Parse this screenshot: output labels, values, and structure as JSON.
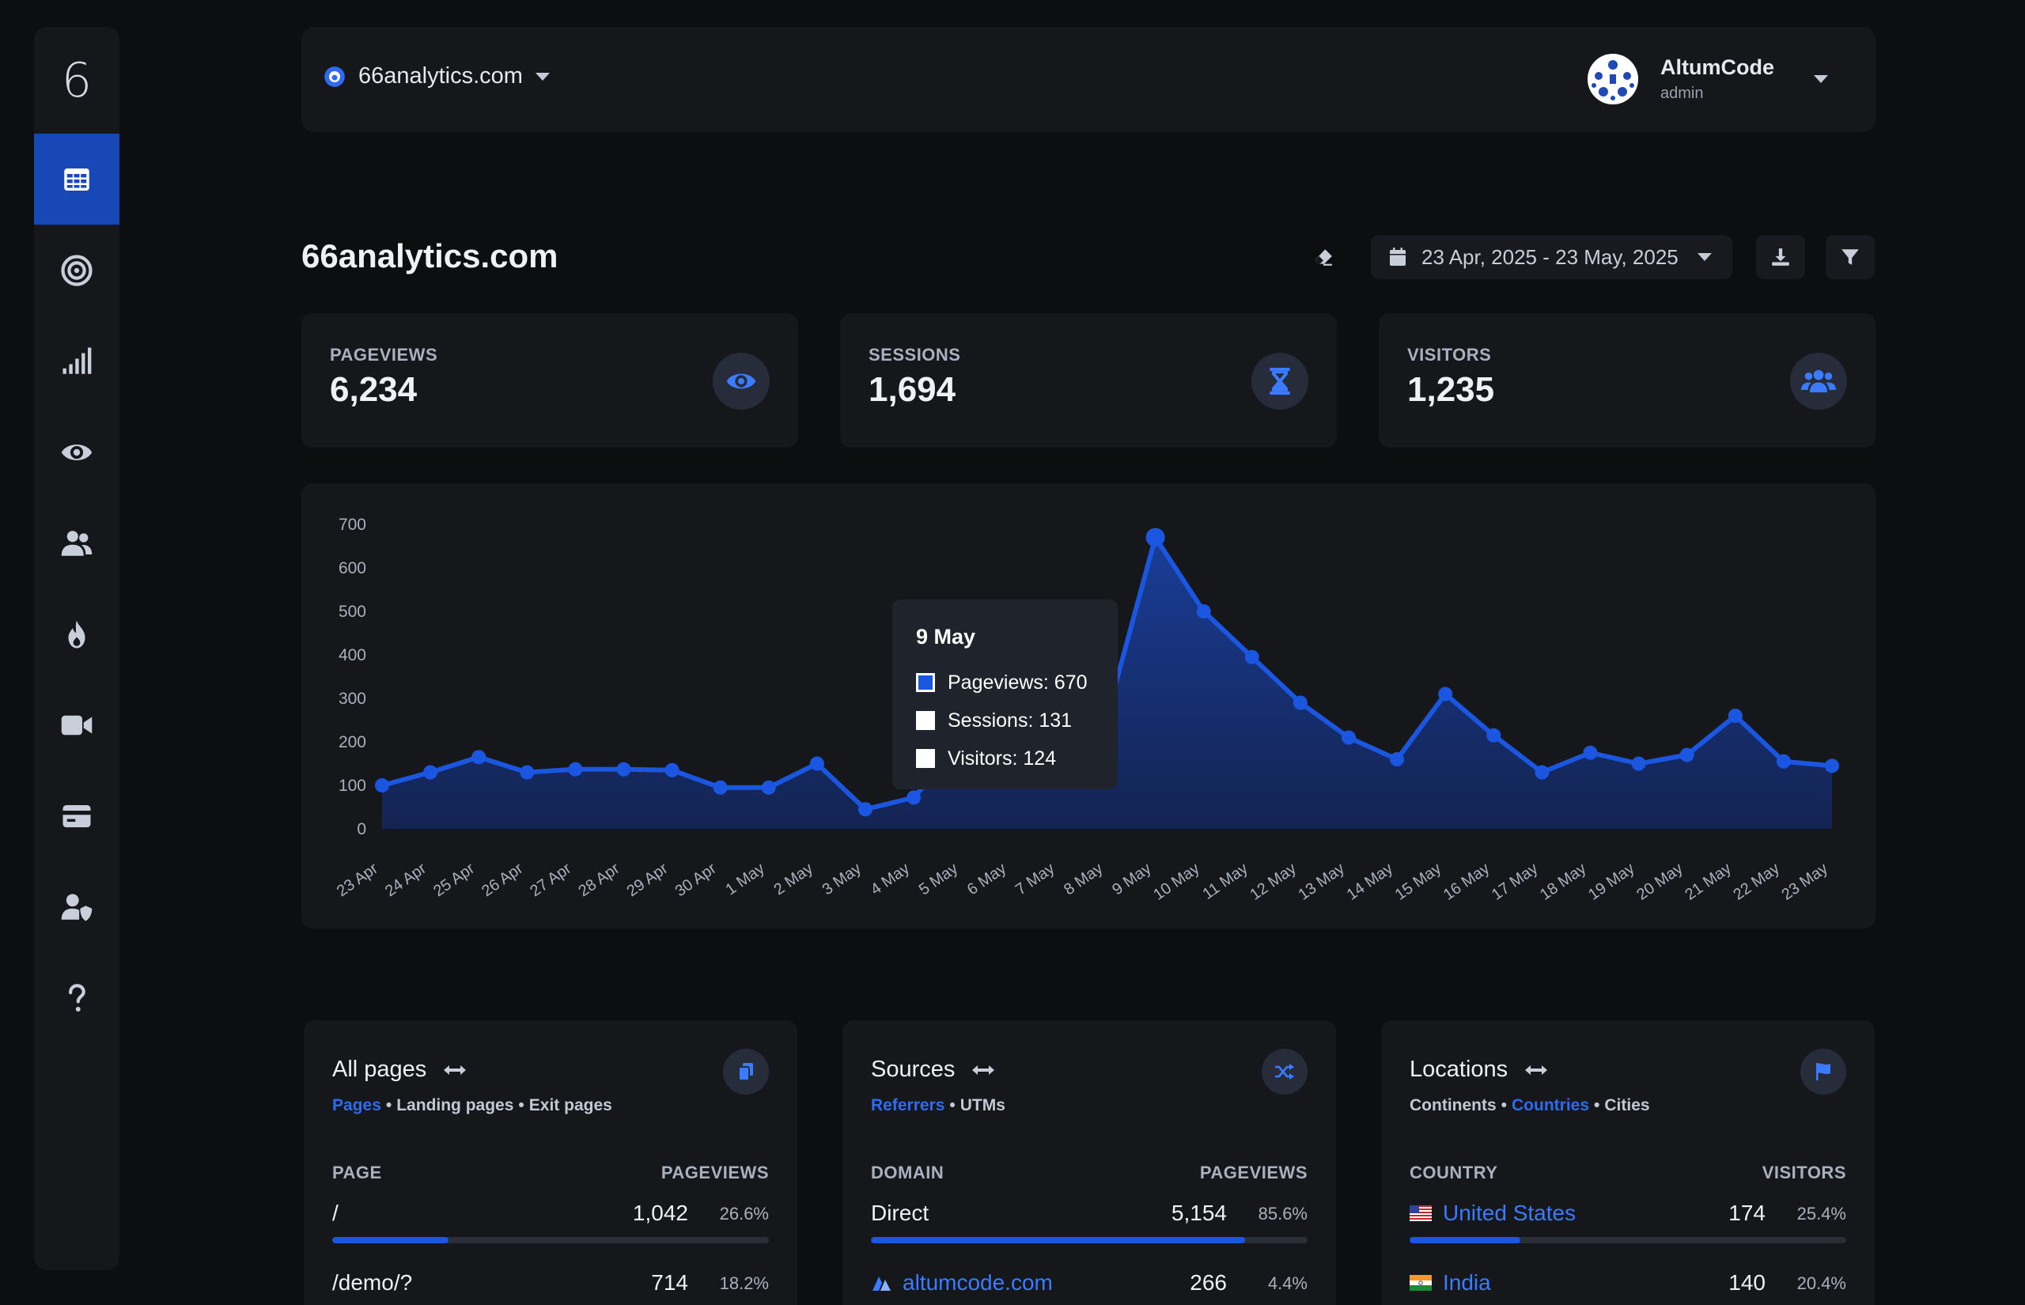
{
  "sidebar": {
    "logo": "6",
    "items": [
      {
        "icon": "grid-icon",
        "active": true
      },
      {
        "icon": "target-icon",
        "active": false
      },
      {
        "icon": "signal-bars-icon",
        "active": false
      },
      {
        "icon": "eye-icon",
        "active": false
      },
      {
        "icon": "users-icon",
        "active": false
      },
      {
        "icon": "fire-icon",
        "active": false
      },
      {
        "icon": "video-icon",
        "active": false
      },
      {
        "icon": "card-icon",
        "active": false
      },
      {
        "icon": "user-shield-icon",
        "active": false
      },
      {
        "icon": "question-icon",
        "active": false
      }
    ]
  },
  "topbar": {
    "site": "66analytics.com",
    "user_name": "AltumCode",
    "user_role": "admin"
  },
  "header": {
    "title": "66analytics.com",
    "date_range": "23 Apr, 2025 - 23 May, 2025"
  },
  "stats": [
    {
      "label": "PAGEVIEWS",
      "value": "6,234",
      "icon": "eye-icon"
    },
    {
      "label": "SESSIONS",
      "value": "1,694",
      "icon": "hourglass-icon"
    },
    {
      "label": "VISITORS",
      "value": "1,235",
      "icon": "users-icon"
    }
  ],
  "tooltip": {
    "title": "9 May",
    "rows": [
      "Pageviews: 670",
      "Sessions: 131",
      "Visitors: 124"
    ]
  },
  "chart_data": {
    "type": "area",
    "categories": [
      "23 Apr",
      "24 Apr",
      "25 Apr",
      "26 Apr",
      "27 Apr",
      "28 Apr",
      "29 Apr",
      "30 Apr",
      "1 May",
      "2 May",
      "3 May",
      "4 May",
      "5 May",
      "6 May",
      "7 May",
      "8 May",
      "9 May",
      "10 May",
      "11 May",
      "12 May",
      "13 May",
      "14 May",
      "15 May",
      "16 May",
      "17 May",
      "18 May",
      "19 May",
      "20 May",
      "21 May",
      "22 May",
      "23 May"
    ],
    "series": [
      {
        "name": "Pageviews",
        "values": [
          100,
          130,
          165,
          130,
          137,
          137,
          135,
          95,
          95,
          150,
          45,
          72,
          200,
          220,
          230,
          260,
          670,
          500,
          395,
          290,
          210,
          160,
          310,
          215,
          130,
          175,
          150,
          170,
          260,
          155,
          145
        ]
      }
    ],
    "yticks": [
      0,
      100,
      200,
      300,
      400,
      500,
      600,
      700
    ],
    "ylim": [
      0,
      700
    ],
    "color": "#1a56e0"
  },
  "cards": [
    {
      "title": "All pages",
      "icon": "copy-icon",
      "tabs": [
        {
          "label": "Pages",
          "on": true
        },
        {
          "label": "Landing pages",
          "on": false
        },
        {
          "label": "Exit pages",
          "on": false
        }
      ],
      "col1": "PAGE",
      "col2": "PAGEVIEWS",
      "rows": [
        {
          "name": "/",
          "value": "1,042",
          "pct": "26.6%",
          "fill": 0.266,
          "link": false,
          "flag": ""
        },
        {
          "name": "/demo/?",
          "value": "714",
          "pct": "18.2%",
          "fill": 0.182,
          "link": false,
          "flag": ""
        }
      ]
    },
    {
      "title": "Sources",
      "icon": "shuffle-icon",
      "tabs": [
        {
          "label": "Referrers",
          "on": true
        },
        {
          "label": "UTMs",
          "on": false
        }
      ],
      "col1": "DOMAIN",
      "col2": "PAGEVIEWS",
      "rows": [
        {
          "name": "Direct",
          "value": "5,154",
          "pct": "85.6%",
          "fill": 0.856,
          "link": false,
          "flag": ""
        },
        {
          "name": "altumcode.com",
          "value": "266",
          "pct": "4.4%",
          "fill": 0.044,
          "link": true,
          "flag": "site"
        }
      ]
    },
    {
      "title": "Locations",
      "icon": "flag-icon",
      "tabs": [
        {
          "label": "Continents",
          "on": false
        },
        {
          "label": "Countries",
          "on": true
        },
        {
          "label": "Cities",
          "on": false
        }
      ],
      "col1": "COUNTRY",
      "col2": "VISITORS",
      "rows": [
        {
          "name": "United States",
          "value": "174",
          "pct": "25.4%",
          "fill": 0.254,
          "link": true,
          "flag": "us"
        },
        {
          "name": "India",
          "value": "140",
          "pct": "20.4%",
          "fill": 0.204,
          "link": true,
          "flag": "in"
        }
      ]
    }
  ]
}
